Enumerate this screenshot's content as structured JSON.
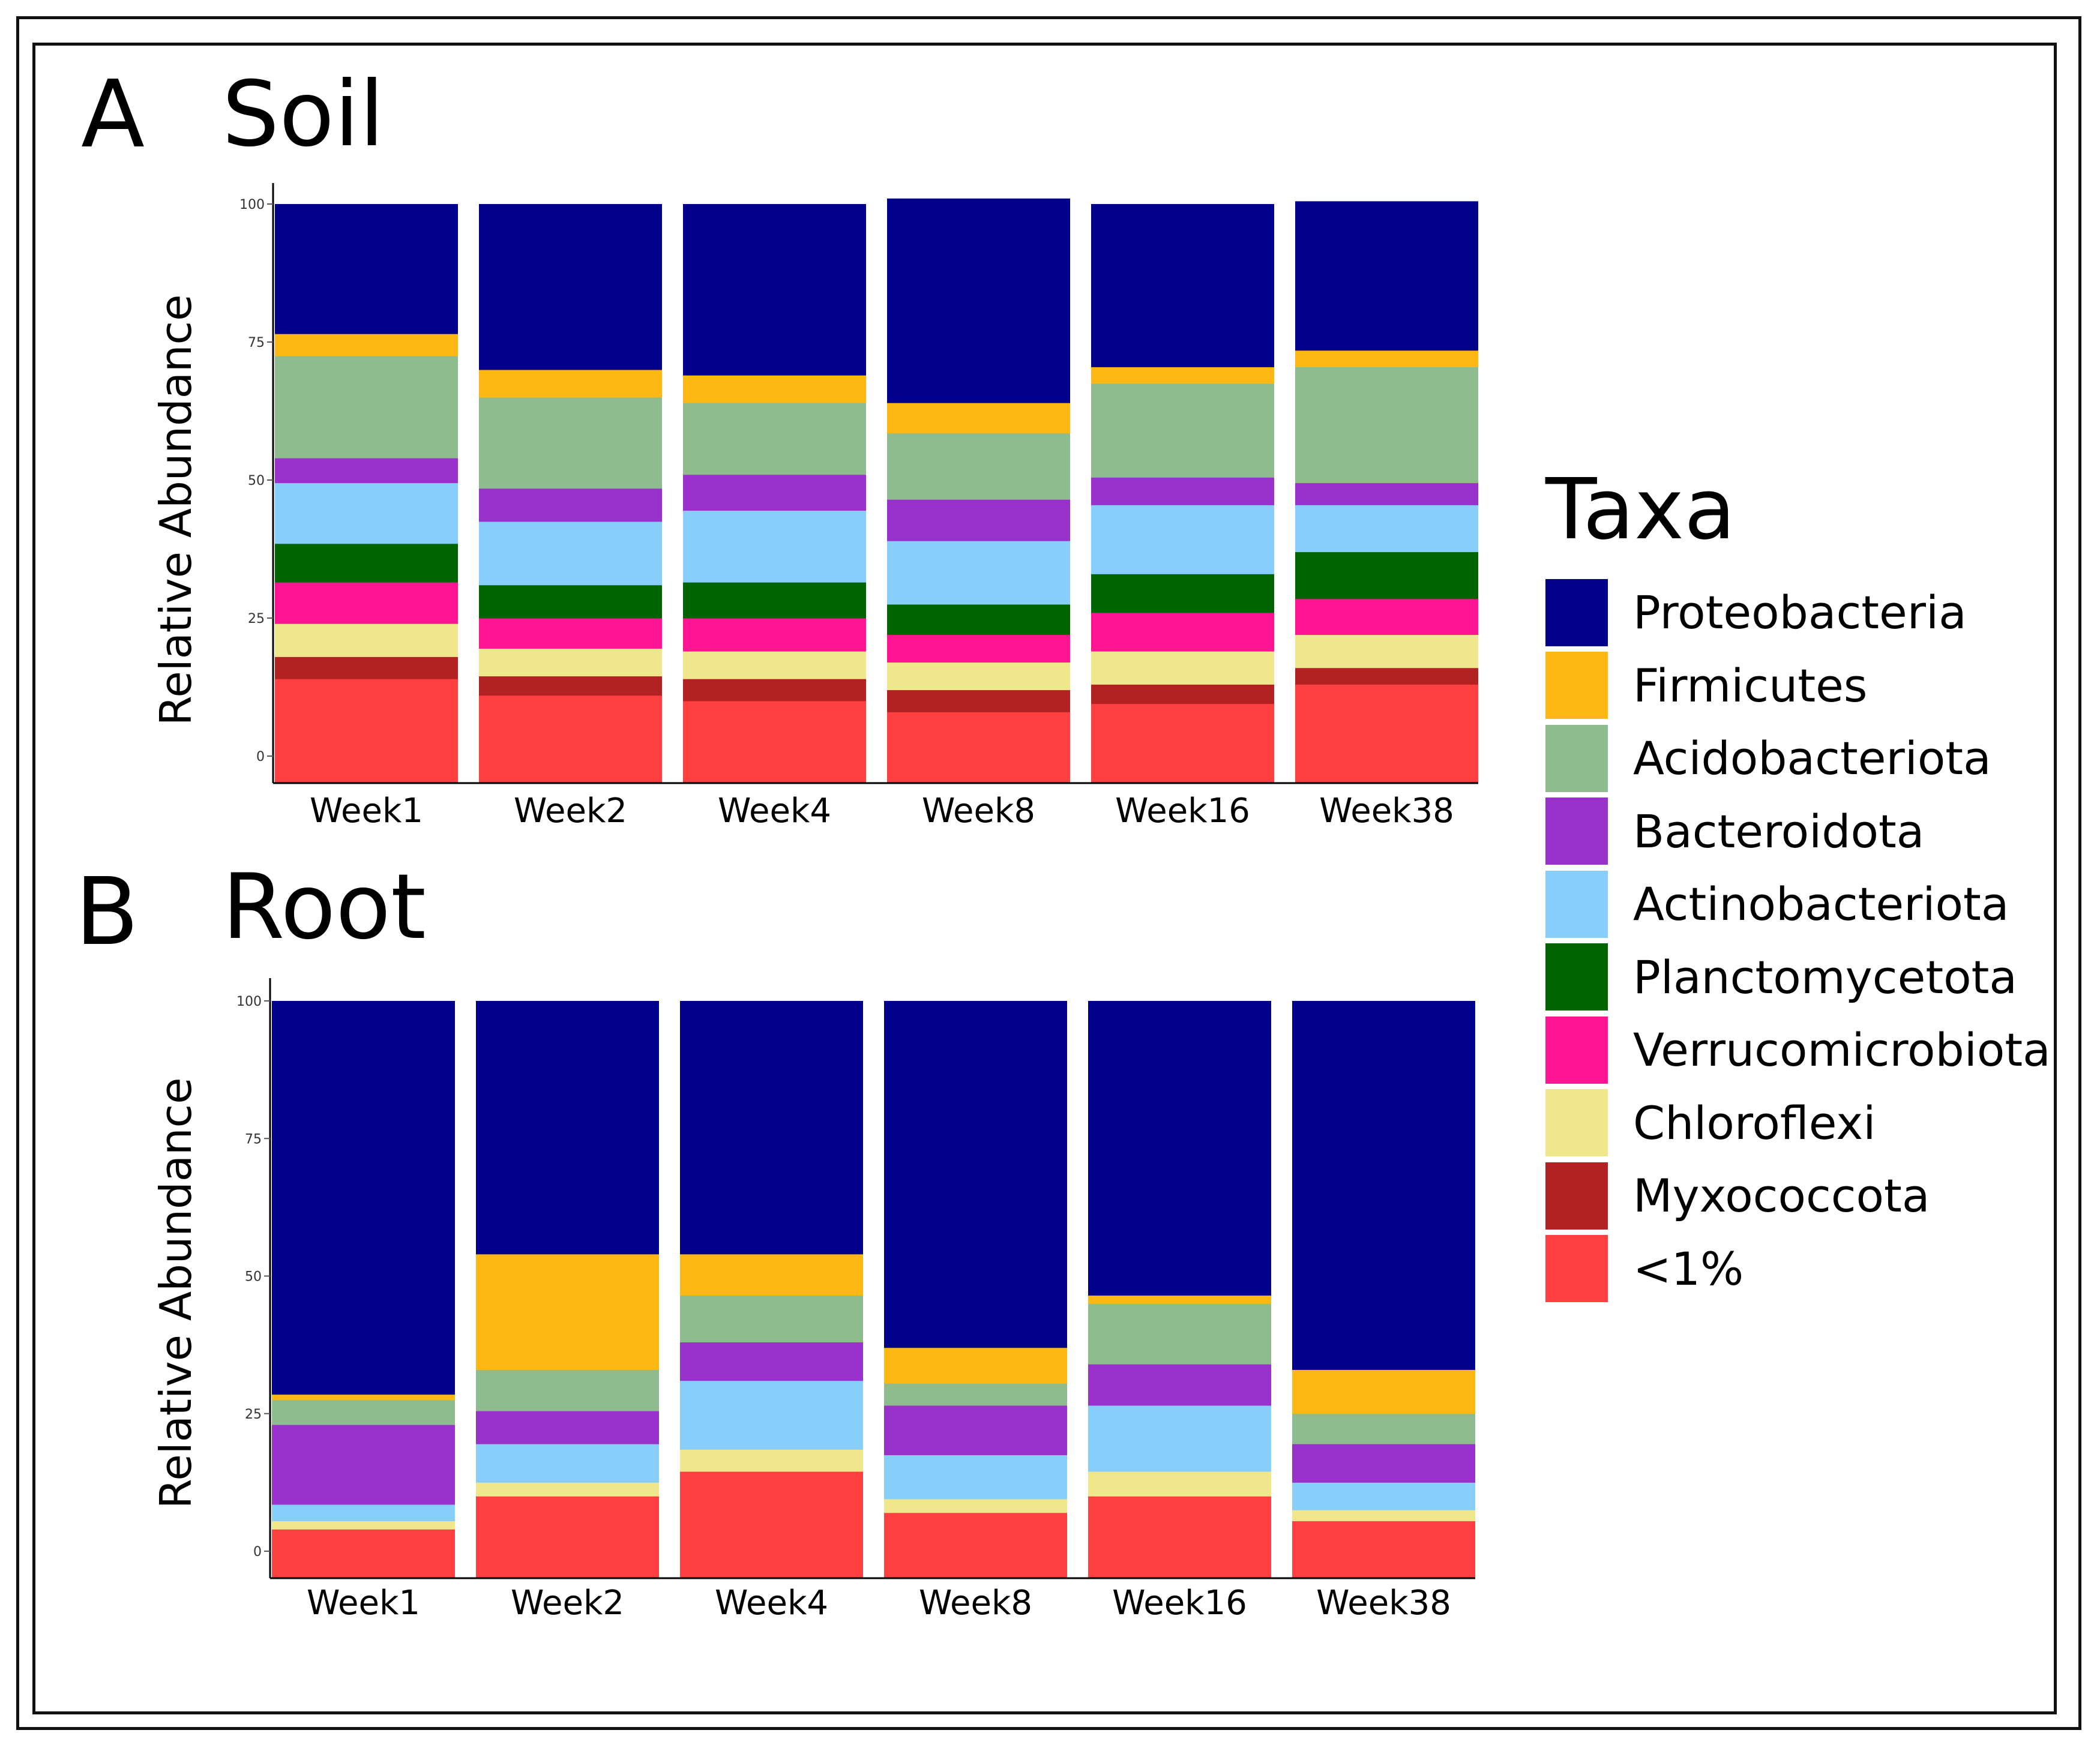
{
  "legend": {
    "title": "Taxa",
    "items": [
      {
        "label": "Proteobacteria",
        "color": "#00008B"
      },
      {
        "label": "Firmicutes",
        "color": "#FDB813"
      },
      {
        "label": "Acidobacteriota",
        "color": "#8FBC8F"
      },
      {
        "label": "Bacteroidota",
        "color": "#9932CC"
      },
      {
        "label": "Actinobacteriota",
        "color": "#87CEFA"
      },
      {
        "label": "Planctomycetota",
        "color": "#006400"
      },
      {
        "label": "Verrucomicrobiota",
        "color": "#FF1493"
      },
      {
        "label": "Chloroflexi",
        "color": "#F0E68C"
      },
      {
        "label": "Myxococcota",
        "color": "#B22222"
      },
      {
        "label": "<1%",
        "color": "#FF4040"
      }
    ]
  },
  "chart_data": [
    {
      "type": "bar",
      "stacked": true,
      "panel_label": "A",
      "title": "Soil",
      "ylabel": "Relative Abundance",
      "xlabel": "",
      "ylim": [
        0,
        100
      ],
      "yticks": [
        "0",
        "25",
        "50",
        "75",
        "100"
      ],
      "categories": [
        "Week1",
        "Week2",
        "Week4",
        "Week8",
        "Week16",
        "Week38"
      ],
      "stack_order_bottom_to_top": [
        "<1%",
        "Myxococcota",
        "Chloroflexi",
        "Verrucomicrobiota",
        "Planctomycetota",
        "Actinobacteriota",
        "Bacteroidota",
        "Acidobacteriota",
        "Firmicutes",
        "Proteobacteria"
      ],
      "series": [
        {
          "name": "<1%",
          "values": [
            14,
            11,
            10,
            8,
            9.5,
            13
          ]
        },
        {
          "name": "Myxococcota",
          "values": [
            4,
            3.5,
            4,
            4,
            3.5,
            3
          ]
        },
        {
          "name": "Chloroflexi",
          "values": [
            6,
            5,
            5,
            5,
            6,
            6
          ]
        },
        {
          "name": "Verrucomicrobiota",
          "values": [
            7.5,
            5.5,
            6,
            5,
            7,
            6.5
          ]
        },
        {
          "name": "Planctomycetota",
          "values": [
            7,
            6,
            6.5,
            5.5,
            7,
            8.5
          ]
        },
        {
          "name": "Actinobacteriota",
          "values": [
            11,
            11.5,
            13,
            11.5,
            12.5,
            8.5
          ]
        },
        {
          "name": "Bacteroidota",
          "values": [
            4.5,
            6,
            6.5,
            7.5,
            5,
            4
          ]
        },
        {
          "name": "Acidobacteriota",
          "values": [
            18.5,
            16.5,
            13,
            12,
            17,
            21
          ]
        },
        {
          "name": "Firmicutes",
          "values": [
            4,
            5,
            5,
            5.5,
            3,
            3
          ]
        },
        {
          "name": "Proteobacteria",
          "values": [
            23.5,
            30,
            31,
            37,
            29.5,
            27
          ]
        }
      ]
    },
    {
      "type": "bar",
      "stacked": true,
      "panel_label": "B",
      "title": "Root",
      "ylabel": "Relative Abundance",
      "xlabel": "",
      "ylim": [
        0,
        100
      ],
      "yticks": [
        "0",
        "25",
        "50",
        "75",
        "100"
      ],
      "categories": [
        "Week1",
        "Week2",
        "Week4",
        "Week8",
        "Week16",
        "Week38"
      ],
      "stack_order_bottom_to_top": [
        "<1%",
        "Myxococcota",
        "Chloroflexi",
        "Verrucomicrobiota",
        "Planctomycetota",
        "Actinobacteriota",
        "Bacteroidota",
        "Acidobacteriota",
        "Firmicutes",
        "Proteobacteria"
      ],
      "series": [
        {
          "name": "<1%",
          "values": [
            4,
            10,
            14.5,
            7,
            10,
            5.5
          ]
        },
        {
          "name": "Myxococcota",
          "values": [
            0,
            0,
            0,
            0,
            0,
            0
          ]
        },
        {
          "name": "Chloroflexi",
          "values": [
            1.5,
            2.5,
            4,
            2.5,
            4.5,
            2
          ]
        },
        {
          "name": "Verrucomicrobiota",
          "values": [
            0,
            0,
            0,
            0,
            0,
            0
          ]
        },
        {
          "name": "Planctomycetota",
          "values": [
            0,
            0,
            0,
            0,
            0,
            0
          ]
        },
        {
          "name": "Actinobacteriota",
          "values": [
            3,
            7,
            12.5,
            8,
            12,
            5
          ]
        },
        {
          "name": "Bacteroidota",
          "values": [
            14.5,
            6,
            7,
            9,
            7.5,
            7
          ]
        },
        {
          "name": "Acidobacteriota",
          "values": [
            4.5,
            7.5,
            8.5,
            4,
            11,
            5.5
          ]
        },
        {
          "name": "Firmicutes",
          "values": [
            1,
            21,
            7.5,
            6.5,
            1.5,
            8
          ]
        },
        {
          "name": "Proteobacteria",
          "values": [
            71.5,
            46,
            46,
            63,
            53.5,
            67
          ]
        }
      ]
    }
  ]
}
